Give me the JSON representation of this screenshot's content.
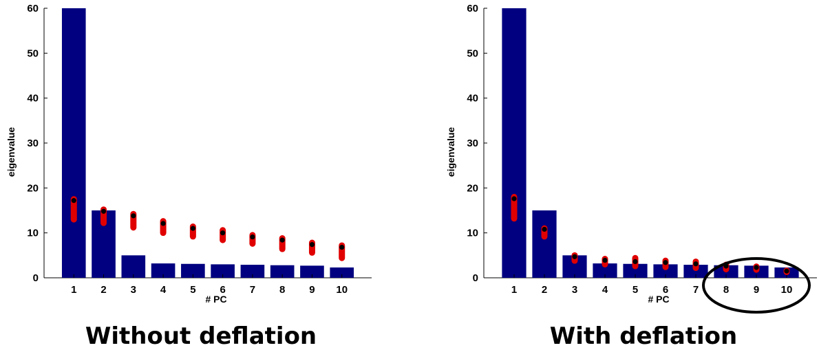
{
  "chart_data": [
    {
      "type": "bar",
      "caption": "Without deflation",
      "xlabel": "# PC",
      "ylabel": "eigenvalue",
      "categories": [
        "1",
        "2",
        "3",
        "4",
        "5",
        "6",
        "7",
        "8",
        "9",
        "10"
      ],
      "ylim": [
        0,
        60
      ],
      "yticks": [
        0,
        10,
        20,
        30,
        40,
        50,
        60
      ],
      "bar_color": "#000080",
      "dot_color": "#e00000",
      "mean_color": "#000000",
      "series": [
        {
          "type": "bar",
          "values": [
            60,
            15.0,
            5.0,
            3.2,
            3.1,
            3.0,
            2.9,
            2.8,
            2.7,
            2.3
          ]
        },
        {
          "type": "range",
          "low": [
            13.0,
            12.2,
            11.2,
            10.0,
            9.2,
            8.4,
            7.6,
            6.4,
            5.6,
            4.4
          ],
          "high": [
            17.5,
            15.2,
            14.2,
            12.6,
            11.4,
            10.6,
            9.5,
            8.8,
            7.8,
            7.2
          ]
        },
        {
          "type": "scatter",
          "values": [
            17.2,
            14.8,
            13.8,
            12.1,
            11.0,
            10.0,
            9.1,
            8.4,
            7.4,
            6.8
          ]
        }
      ],
      "highlight": null
    },
    {
      "type": "bar",
      "caption": "With deflation",
      "xlabel": "# PC",
      "ylabel": "eigenvalue",
      "categories": [
        "1",
        "2",
        "3",
        "4",
        "5",
        "6",
        "7",
        "8",
        "9",
        "10"
      ],
      "ylim": [
        0,
        60
      ],
      "yticks": [
        0,
        10,
        20,
        30,
        40,
        50,
        60
      ],
      "bar_color": "#000080",
      "dot_color": "#e00000",
      "mean_color": "#000000",
      "series": [
        {
          "type": "bar",
          "values": [
            60,
            15.0,
            5.0,
            3.2,
            3.1,
            3.0,
            2.9,
            2.8,
            2.7,
            2.3
          ]
        },
        {
          "type": "range",
          "low": [
            13.2,
            9.2,
            3.8,
            3.0,
            2.6,
            2.4,
            2.2,
            1.9,
            1.8,
            1.3
          ],
          "high": [
            18.0,
            11.0,
            5.0,
            4.2,
            4.4,
            3.8,
            3.6,
            2.9,
            2.5,
            1.6
          ]
        },
        {
          "type": "scatter",
          "values": [
            17.6,
            10.8,
            4.7,
            3.9,
            3.6,
            3.4,
            3.1,
            2.6,
            2.3,
            1.5
          ]
        }
      ],
      "highlight": {
        "from": 8,
        "to": 10
      }
    }
  ]
}
